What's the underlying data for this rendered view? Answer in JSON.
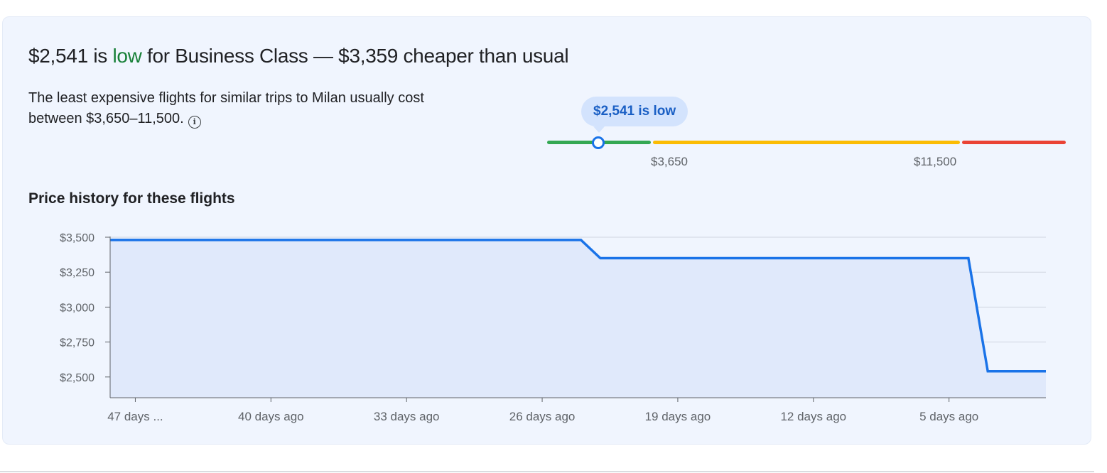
{
  "insight": {
    "price": "$2,541",
    "is_word": "is",
    "rating": "low",
    "rest": "for Business Class — $3,359 cheaper than usual",
    "description": "The least expensive flights for similar trips to Milan usually cost between $3,650–11,500."
  },
  "range": {
    "tooltip": "$2,541 is low",
    "low_label": "$3,650",
    "high_label": "$11,500"
  },
  "colors": {
    "accent": "#1a73e8",
    "low": "#188038",
    "green": "#34a853",
    "yellow": "#fbbc04",
    "red": "#ea4335"
  },
  "price_history": {
    "title": "Price history for these flights"
  },
  "chart_data": {
    "type": "area",
    "title": "",
    "xlabel": "",
    "ylabel": "",
    "ylim": [
      2350,
      3500
    ],
    "yticks": [
      3500,
      3250,
      3000,
      2750,
      2500
    ],
    "ytick_labels": [
      "$3,500",
      "$3,250",
      "$3,000",
      "$2,750",
      "$2,500"
    ],
    "xlim": [
      -48.3,
      0
    ],
    "xticks": [
      -47,
      -40,
      -33,
      -26,
      -19,
      -12,
      -5
    ],
    "xtick_labels": [
      "47 days ...",
      "40 days ago",
      "33 days ago",
      "26 days ago",
      "19 days ago",
      "12 days ago",
      "5 days ago"
    ],
    "grid": true,
    "x": [
      -48.3,
      -24,
      -23,
      -4,
      -3,
      0
    ],
    "values": [
      3480,
      3480,
      3350,
      3350,
      2541,
      2541
    ]
  }
}
